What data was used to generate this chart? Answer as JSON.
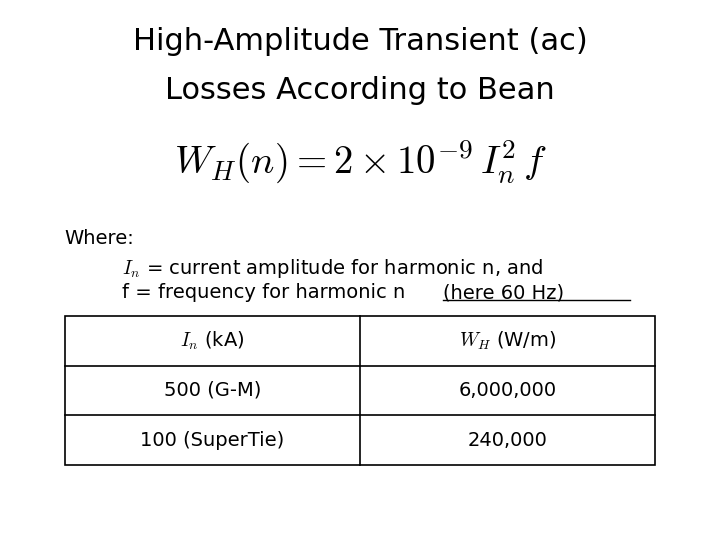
{
  "title_line1": "High-Amplitude Transient (ac)",
  "title_line2": "Losses According to Bean",
  "formula": "$W_{H}(n) = 2 \\times 10^{-9}\\, I_n^2\\, f$",
  "where_label": "Where:",
  "desc_line1": "$I_n$ = current amplitude for harmonic n, and",
  "desc_line2_plain": "f = frequency for harmonic n ",
  "desc_line2_underline": "(here 60 Hz)",
  "table_headers": [
    "$I_n$ (kA)",
    "$W_H$ (W/m)"
  ],
  "table_rows": [
    [
      "500 (G-M)",
      "6,000,000"
    ],
    [
      "100 (SuperTie)",
      "240,000"
    ]
  ],
  "bg_color": "#ffffff",
  "text_color": "#000000",
  "title_fontsize": 22,
  "formula_fontsize": 28,
  "body_fontsize": 14,
  "table_fontsize": 14
}
